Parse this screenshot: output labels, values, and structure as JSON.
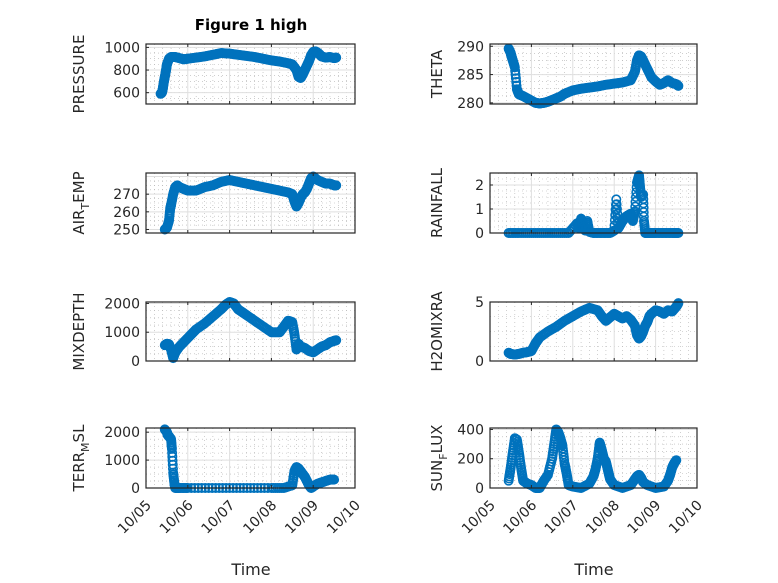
{
  "figure_title": "Figure 1 high",
  "colors": {
    "marker": "#0072BD",
    "axis": "#262626",
    "grid": "#DFDFDF",
    "minor_grid": "#B0B0B0"
  },
  "chart_data": [
    {
      "type": "scatter",
      "title": "Figure 1 high",
      "ylabel": "PRESSURE",
      "xlabel": "",
      "xlim": [
        0,
        5
      ],
      "ylim": [
        500,
        1030
      ],
      "yticks": [
        600,
        800,
        1000
      ],
      "grid": true,
      "x": [
        0.35,
        0.38,
        0.4,
        0.42,
        0.45,
        0.48,
        0.5,
        0.55,
        0.6,
        0.7,
        0.8,
        0.9,
        1.0,
        1.2,
        1.4,
        1.6,
        1.8,
        2.0,
        2.2,
        2.4,
        2.6,
        2.8,
        3.0,
        3.2,
        3.4,
        3.5,
        3.6,
        3.65,
        3.7,
        3.75,
        3.8,
        3.85,
        3.9,
        3.95,
        4.0,
        4.05,
        4.1,
        4.15,
        4.2,
        4.3,
        4.4,
        4.5,
        4.55
      ],
      "y": [
        590,
        600,
        630,
        680,
        740,
        800,
        850,
        900,
        915,
        915,
        905,
        895,
        900,
        910,
        920,
        935,
        950,
        945,
        935,
        925,
        915,
        900,
        885,
        875,
        860,
        850,
        800,
        740,
        730,
        760,
        800,
        840,
        880,
        930,
        960,
        965,
        955,
        940,
        920,
        910,
        915,
        905,
        910
      ]
    },
    {
      "type": "scatter",
      "title": "",
      "ylabel": "THETA",
      "xlabel": "",
      "xlim": [
        0,
        5
      ],
      "ylim": [
        279.8,
        290.4
      ],
      "yticks": [
        280,
        285,
        290
      ],
      "grid": true,
      "x": [
        0.45,
        0.5,
        0.52,
        0.55,
        0.6,
        0.65,
        0.7,
        0.8,
        0.9,
        1.0,
        1.1,
        1.2,
        1.3,
        1.4,
        1.5,
        1.6,
        1.7,
        1.8,
        2.0,
        2.2,
        2.4,
        2.6,
        2.8,
        3.0,
        3.2,
        3.4,
        3.5,
        3.55,
        3.6,
        3.65,
        3.7,
        3.8,
        3.9,
        4.0,
        4.1,
        4.2,
        4.3,
        4.4,
        4.5,
        4.55
      ],
      "y": [
        289.6,
        288.8,
        288.2,
        287.5,
        286.3,
        282.4,
        281.5,
        281.2,
        280.8,
        280.4,
        280.0,
        279.9,
        280.0,
        280.2,
        280.5,
        280.8,
        281.1,
        281.6,
        282.2,
        282.5,
        282.7,
        282.9,
        283.2,
        283.4,
        283.6,
        284.0,
        285.5,
        287.5,
        288.4,
        288.2,
        287.5,
        286.0,
        284.5,
        283.8,
        283.2,
        283.5,
        284.0,
        283.5,
        283.3,
        283.0
      ]
    },
    {
      "type": "scatter",
      "title": "",
      "ylabel": "AIR_TEMP",
      "ylabel_parts": [
        "AIR",
        "T",
        "EMP"
      ],
      "xlabel": "",
      "xlim": [
        0,
        5
      ],
      "ylim": [
        248,
        282
      ],
      "yticks": [
        250,
        260,
        270
      ],
      "grid": true,
      "x": [
        0.45,
        0.5,
        0.55,
        0.58,
        0.6,
        0.65,
        0.7,
        0.75,
        0.8,
        0.9,
        1.0,
        1.2,
        1.4,
        1.6,
        1.8,
        2.0,
        2.2,
        2.4,
        2.6,
        2.8,
        3.0,
        3.2,
        3.4,
        3.5,
        3.55,
        3.6,
        3.65,
        3.7,
        3.75,
        3.8,
        3.85,
        3.9,
        3.95,
        4.0,
        4.05,
        4.1,
        4.2,
        4.3,
        4.4,
        4.5,
        4.55
      ],
      "y": [
        250,
        251,
        255,
        262,
        264,
        270,
        274,
        275,
        274,
        273,
        272,
        272,
        274,
        275,
        277,
        278,
        277,
        276,
        275,
        274,
        273,
        272,
        271,
        270,
        266,
        263,
        265,
        268,
        270,
        271,
        273,
        276,
        279,
        280,
        279,
        278,
        277,
        276,
        276,
        275,
        275
      ]
    },
    {
      "type": "scatter",
      "title": "",
      "ylabel": "RAINFALL",
      "xlabel": "",
      "xlim": [
        0,
        5
      ],
      "ylim": [
        0,
        2.5
      ],
      "yticks": [
        0,
        1,
        2
      ],
      "grid": true,
      "x": [
        0.45,
        0.7,
        1.0,
        1.3,
        1.6,
        1.9,
        2.1,
        2.15,
        2.2,
        2.25,
        2.3,
        2.35,
        2.4,
        2.5,
        2.7,
        2.9,
        3.0,
        3.05,
        3.1,
        3.15,
        3.2,
        3.25,
        3.3,
        3.35,
        3.4,
        3.45,
        3.5,
        3.55,
        3.6,
        3.62,
        3.65,
        3.7,
        3.72,
        3.75,
        3.8,
        3.85,
        4.0,
        4.2,
        4.4,
        4.55
      ],
      "y": [
        0,
        0,
        0,
        0,
        0,
        0,
        0.4,
        0.2,
        0.6,
        0.3,
        0.1,
        0.5,
        0.05,
        0,
        0,
        0,
        0.1,
        1.4,
        0.2,
        0.35,
        0.5,
        0.6,
        0.7,
        0.75,
        0.8,
        0.5,
        0.9,
        2.1,
        2.4,
        2.0,
        1.5,
        1.6,
        0.5,
        0,
        0,
        0,
        0,
        0,
        0,
        0
      ]
    },
    {
      "type": "scatter",
      "title": "",
      "ylabel": "MIXDEPTH",
      "xlabel": "",
      "xlim": [
        0,
        5
      ],
      "ylim": [
        0,
        2050
      ],
      "yticks": [
        0,
        1000,
        2000
      ],
      "grid": true,
      "x": [
        0.45,
        0.5,
        0.55,
        0.6,
        0.65,
        0.7,
        0.8,
        0.9,
        1.0,
        1.1,
        1.2,
        1.4,
        1.6,
        1.8,
        1.9,
        2.0,
        2.1,
        2.2,
        2.3,
        2.4,
        2.6,
        2.8,
        3.0,
        3.2,
        3.3,
        3.4,
        3.5,
        3.55,
        3.6,
        3.65,
        3.7,
        3.8,
        3.9,
        4.0,
        4.1,
        4.2,
        4.3,
        4.4,
        4.5,
        4.55
      ],
      "y": [
        550,
        600,
        580,
        400,
        100,
        300,
        500,
        650,
        800,
        950,
        1100,
        1300,
        1550,
        1800,
        1950,
        2050,
        2000,
        1800,
        1700,
        1600,
        1400,
        1200,
        1000,
        1000,
        1200,
        1400,
        1350,
        950,
        400,
        600,
        500,
        450,
        350,
        300,
        400,
        500,
        550,
        650,
        700,
        720
      ]
    },
    {
      "type": "scatter",
      "title": "",
      "ylabel": "H2OMIXRA",
      "xlabel": "",
      "xlim": [
        0,
        5
      ],
      "ylim": [
        0,
        5
      ],
      "yticks": [
        0,
        5
      ],
      "grid": true,
      "x": [
        0.45,
        0.5,
        0.6,
        0.7,
        0.8,
        0.9,
        1.0,
        1.1,
        1.2,
        1.4,
        1.6,
        1.8,
        2.0,
        2.2,
        2.4,
        2.6,
        2.7,
        2.8,
        2.9,
        3.0,
        3.1,
        3.2,
        3.3,
        3.4,
        3.5,
        3.55,
        3.6,
        3.65,
        3.7,
        3.75,
        3.8,
        3.85,
        3.9,
        4.0,
        4.1,
        4.2,
        4.3,
        4.4,
        4.5,
        4.55
      ],
      "y": [
        0.7,
        0.6,
        0.55,
        0.6,
        0.7,
        0.75,
        0.85,
        1.5,
        2.0,
        2.5,
        2.9,
        3.4,
        3.8,
        4.2,
        4.5,
        4.3,
        3.8,
        3.4,
        3.7,
        4.0,
        3.8,
        3.6,
        3.8,
        3.5,
        3.0,
        2.2,
        1.9,
        2.1,
        2.5,
        3.0,
        3.3,
        3.8,
        4.0,
        4.3,
        4.2,
        4.0,
        4.3,
        4.2,
        4.6,
        4.9
      ]
    },
    {
      "type": "scatter",
      "title": "",
      "ylabel": "TERR_MSL",
      "ylabel_parts": [
        "TERR",
        "M",
        "SL"
      ],
      "xlabel": "Time",
      "xlim": [
        0,
        5
      ],
      "ylim": [
        0,
        2150
      ],
      "yticks": [
        0,
        1000,
        2000
      ],
      "grid": true,
      "xticks": [
        "10/05",
        "10/06",
        "10/07",
        "10/08",
        "10/09",
        "10/10"
      ],
      "x": [
        0.45,
        0.5,
        0.52,
        0.55,
        0.6,
        0.62,
        0.65,
        0.68,
        0.7,
        0.8,
        1.0,
        1.5,
        2.0,
        2.5,
        3.0,
        3.3,
        3.5,
        3.55,
        3.6,
        3.65,
        3.7,
        3.75,
        3.8,
        3.85,
        3.9,
        3.95,
        4.0,
        4.1,
        4.2,
        4.3,
        4.4,
        4.5
      ],
      "y": [
        2100,
        2000,
        1900,
        1850,
        1750,
        1400,
        550,
        150,
        0,
        0,
        0,
        0,
        0,
        0,
        0,
        0,
        100,
        600,
        750,
        700,
        600,
        500,
        400,
        250,
        100,
        0,
        50,
        150,
        200,
        250,
        300,
        300
      ]
    },
    {
      "type": "scatter",
      "title": "",
      "ylabel": "SUN_FLUX",
      "ylabel_parts": [
        "SUN",
        "F",
        "LUX"
      ],
      "xlabel": "Time",
      "xlim": [
        0,
        5
      ],
      "ylim": [
        0,
        410
      ],
      "yticks": [
        0,
        200,
        400
      ],
      "grid": true,
      "xticks": [
        "10/05",
        "10/06",
        "10/07",
        "10/08",
        "10/09",
        "10/10"
      ],
      "x": [
        0.45,
        0.5,
        0.55,
        0.6,
        0.65,
        0.7,
        0.75,
        0.8,
        0.85,
        0.9,
        1.0,
        1.1,
        1.2,
        1.3,
        1.4,
        1.5,
        1.55,
        1.6,
        1.65,
        1.7,
        1.75,
        1.8,
        1.85,
        1.9,
        2.0,
        2.2,
        2.4,
        2.5,
        2.55,
        2.6,
        2.65,
        2.7,
        2.75,
        2.8,
        2.85,
        2.9,
        3.0,
        3.2,
        3.4,
        3.5,
        3.55,
        3.6,
        3.65,
        3.7,
        3.8,
        4.0,
        4.2,
        4.3,
        4.35,
        4.4,
        4.45,
        4.5
      ],
      "y": [
        50,
        140,
        240,
        340,
        330,
        240,
        140,
        50,
        40,
        30,
        20,
        0,
        0,
        50,
        90,
        200,
        300,
        400,
        380,
        340,
        290,
        170,
        100,
        20,
        10,
        0,
        30,
        80,
        130,
        200,
        310,
        260,
        200,
        180,
        120,
        60,
        20,
        0,
        20,
        60,
        80,
        90,
        70,
        40,
        20,
        0,
        10,
        50,
        90,
        140,
        170,
        190
      ]
    }
  ]
}
